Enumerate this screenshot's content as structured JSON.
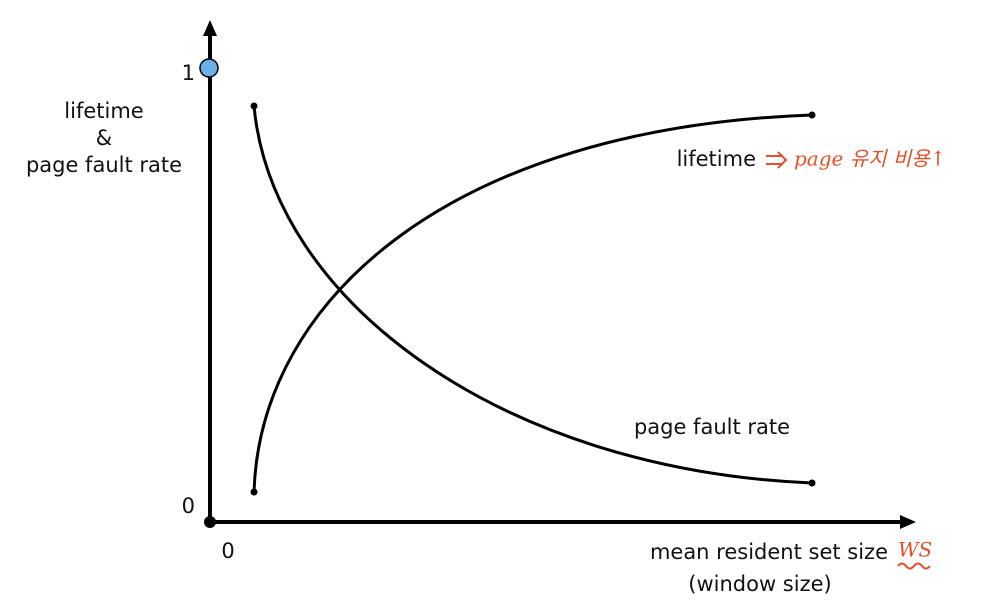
{
  "axes": {
    "y_top_label": "1",
    "y_bottom_label": "0",
    "x_origin_label": "0",
    "y_title": [
      "lifetime",
      "&",
      "page fault rate"
    ],
    "x_title": "mean resident set size",
    "x_subtitle": "(window size)"
  },
  "curves": {
    "lifetime": "lifetime",
    "page_fault_rate": "page fault rate"
  },
  "annotations": {
    "lifetime_note": "page 유지 비용↑",
    "x_note": "WS"
  }
}
